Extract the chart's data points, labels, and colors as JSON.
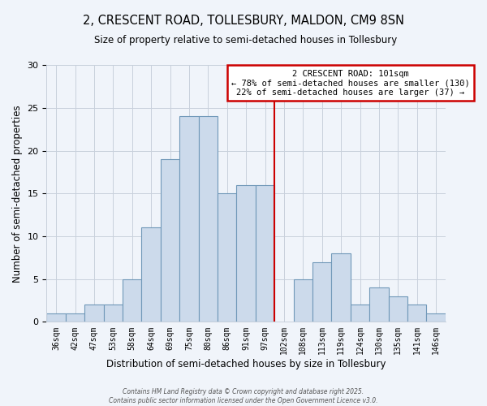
{
  "title_line1": "2, CRESCENT ROAD, TOLLESBURY, MALDON, CM9 8SN",
  "title_line2": "Size of property relative to semi-detached houses in Tollesbury",
  "xlabel": "Distribution of semi-detached houses by size in Tollesbury",
  "ylabel": "Number of semi-detached properties",
  "footer_line1": "Contains HM Land Registry data © Crown copyright and database right 2025.",
  "footer_line2": "Contains public sector information licensed under the Open Government Licence v3.0.",
  "bin_labels": [
    "36sqm",
    "42sqm",
    "47sqm",
    "53sqm",
    "58sqm",
    "64sqm",
    "69sqm",
    "75sqm",
    "80sqm",
    "86sqm",
    "91sqm",
    "97sqm",
    "102sqm",
    "108sqm",
    "113sqm",
    "119sqm",
    "124sqm",
    "130sqm",
    "135sqm",
    "141sqm",
    "146sqm"
  ],
  "counts": [
    1,
    1,
    2,
    2,
    5,
    11,
    19,
    24,
    24,
    15,
    16,
    16,
    0,
    5,
    7,
    8,
    2,
    4,
    3,
    2,
    1
  ],
  "bar_color": "#ccdaeb",
  "bar_edge_color": "#7098b8",
  "marker_bin_index": 12,
  "marker_line_color": "#cc0000",
  "annotation_title": "2 CRESCENT ROAD: 101sqm",
  "annotation_line1": "← 78% of semi-detached houses are smaller (130)",
  "annotation_line2": "22% of semi-detached houses are larger (37) →",
  "annotation_box_color": "#cc0000",
  "ylim": [
    0,
    30
  ],
  "yticks": [
    0,
    5,
    10,
    15,
    20,
    25,
    30
  ],
  "background_color": "#f0f4fa",
  "grid_color": "#c8d0dc"
}
